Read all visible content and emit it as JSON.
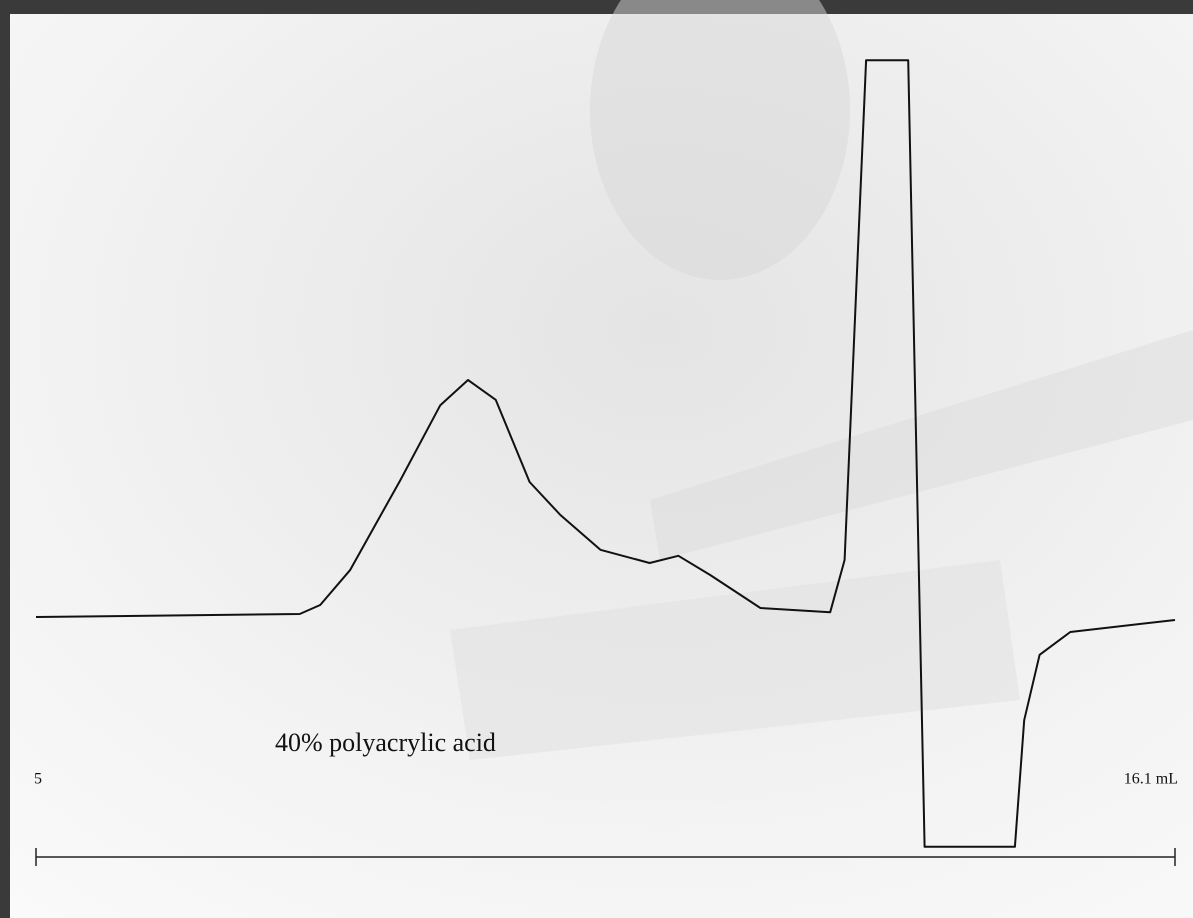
{
  "chart_data": {
    "type": "line",
    "annotation": "40% polyacrylic acid",
    "x": [
      5,
      7.57,
      7.77,
      8.06,
      8.55,
      8.94,
      9.21,
      9.48,
      9.81,
      10.11,
      10.5,
      10.98,
      11.26,
      11.57,
      12.06,
      12.74,
      12.88,
      13.09,
      13.5,
      13.66,
      14.54,
      14.63,
      14.78,
      15.08,
      16.1
    ],
    "series": [
      {
        "color": "#111111",
        "values": [
          0,
          0.5,
          2,
          7.8,
          22.8,
          35.3,
          39.5,
          36.2,
          22.5,
          17,
          11.2,
          9,
          10.2,
          7,
          1.5,
          0.8,
          9.5,
          92.8,
          92.8,
          -38.3,
          -38.3,
          -17.2,
          -6.3,
          -2.5,
          -0.5
        ]
      }
    ],
    "xlim": [
      5,
      16.1
    ],
    "xticks": [
      5,
      {
        "value": 16.1,
        "label": "16.1 mL"
      }
    ],
    "ylim": [
      -40,
      100
    ]
  }
}
